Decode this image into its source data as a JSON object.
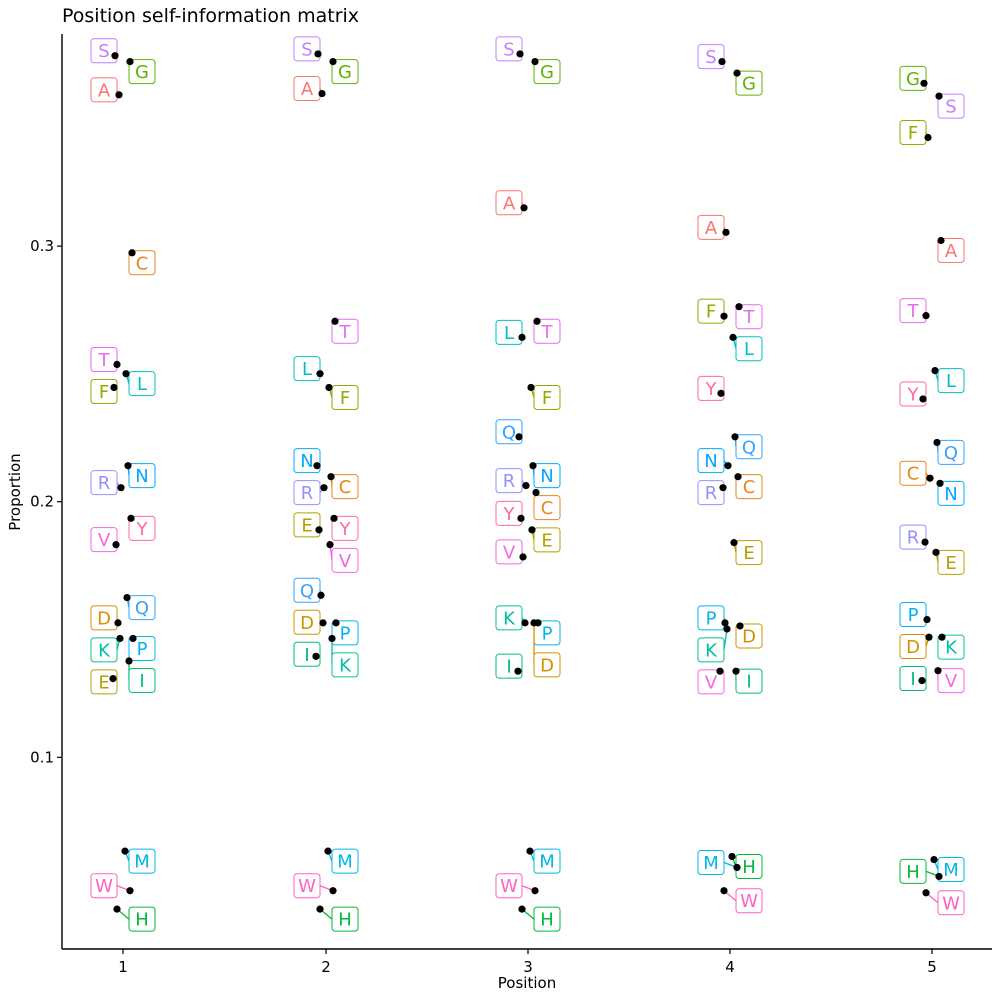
{
  "chart_data": {
    "type": "scatter",
    "title": "Position self-information matrix",
    "xlabel": "Position",
    "ylabel": "Proportion",
    "x_categories": [
      "1",
      "2",
      "3",
      "4",
      "5"
    ],
    "yticks": [
      0.1,
      0.2,
      0.3
    ],
    "ytick_labels": [
      "0.1",
      "0.2",
      "0.3"
    ],
    "ylim": [
      0.025,
      0.383
    ],
    "grid": false,
    "legend": "none",
    "colors": {
      "A": "#F8766D",
      "C": "#E7861B",
      "D": "#D39200",
      "E": "#B79F00",
      "F": "#93AA00",
      "G": "#5EB300",
      "H": "#00BA38",
      "I": "#00BF74",
      "K": "#00C19F",
      "L": "#00BFC4",
      "M": "#00B8E7",
      "N": "#00A9FF",
      "P": "#00B4F0",
      "Q": "#35A2FF",
      "R": "#9590FF",
      "S": "#C77CFF",
      "T": "#E76BF3",
      "V": "#F564E3",
      "W": "#FF61C3",
      "Y": "#FF6C91"
    },
    "points": [
      {
        "pos": 1,
        "aa": "S",
        "y": 0.3745
      },
      {
        "pos": 1,
        "aa": "G",
        "y": 0.3722
      },
      {
        "pos": 1,
        "aa": "A",
        "y": 0.3592
      },
      {
        "pos": 1,
        "aa": "C",
        "y": 0.2974
      },
      {
        "pos": 1,
        "aa": "T",
        "y": 0.2537
      },
      {
        "pos": 1,
        "aa": "L",
        "y": 0.2501
      },
      {
        "pos": 1,
        "aa": "F",
        "y": 0.2447
      },
      {
        "pos": 1,
        "aa": "N",
        "y": 0.2141
      },
      {
        "pos": 1,
        "aa": "R",
        "y": 0.2055
      },
      {
        "pos": 1,
        "aa": "Y",
        "y": 0.1935
      },
      {
        "pos": 1,
        "aa": "V",
        "y": 0.1832
      },
      {
        "pos": 1,
        "aa": "Q",
        "y": 0.1625
      },
      {
        "pos": 1,
        "aa": "D",
        "y": 0.1526
      },
      {
        "pos": 1,
        "aa": "P",
        "y": 0.1465
      },
      {
        "pos": 1,
        "aa": "K",
        "y": 0.1465
      },
      {
        "pos": 1,
        "aa": "I",
        "y": 0.1377
      },
      {
        "pos": 1,
        "aa": "E",
        "y": 0.1308
      },
      {
        "pos": 1,
        "aa": "M",
        "y": 0.0633
      },
      {
        "pos": 1,
        "aa": "W",
        "y": 0.0478
      },
      {
        "pos": 1,
        "aa": "H",
        "y": 0.0406
      },
      {
        "pos": 2,
        "aa": "S",
        "y": 0.3752
      },
      {
        "pos": 2,
        "aa": "G",
        "y": 0.3722
      },
      {
        "pos": 2,
        "aa": "A",
        "y": 0.3597
      },
      {
        "pos": 2,
        "aa": "T",
        "y": 0.2706
      },
      {
        "pos": 2,
        "aa": "L",
        "y": 0.2501
      },
      {
        "pos": 2,
        "aa": "F",
        "y": 0.2447
      },
      {
        "pos": 2,
        "aa": "N",
        "y": 0.2141
      },
      {
        "pos": 2,
        "aa": "C",
        "y": 0.2098
      },
      {
        "pos": 2,
        "aa": "R",
        "y": 0.2055
      },
      {
        "pos": 2,
        "aa": "Y",
        "y": 0.1935
      },
      {
        "pos": 2,
        "aa": "E",
        "y": 0.189
      },
      {
        "pos": 2,
        "aa": "V",
        "y": 0.1832
      },
      {
        "pos": 2,
        "aa": "Q",
        "y": 0.1634
      },
      {
        "pos": 2,
        "aa": "P",
        "y": 0.1526
      },
      {
        "pos": 2,
        "aa": "D",
        "y": 0.1526
      },
      {
        "pos": 2,
        "aa": "K",
        "y": 0.1465
      },
      {
        "pos": 2,
        "aa": "I",
        "y": 0.1395
      },
      {
        "pos": 2,
        "aa": "M",
        "y": 0.0633
      },
      {
        "pos": 2,
        "aa": "W",
        "y": 0.0478
      },
      {
        "pos": 2,
        "aa": "H",
        "y": 0.0406
      },
      {
        "pos": 3,
        "aa": "S",
        "y": 0.3752
      },
      {
        "pos": 3,
        "aa": "G",
        "y": 0.3722
      },
      {
        "pos": 3,
        "aa": "A",
        "y": 0.315
      },
      {
        "pos": 3,
        "aa": "T",
        "y": 0.2706
      },
      {
        "pos": 3,
        "aa": "L",
        "y": 0.2643
      },
      {
        "pos": 3,
        "aa": "F",
        "y": 0.2447
      },
      {
        "pos": 3,
        "aa": "Q",
        "y": 0.2254
      },
      {
        "pos": 3,
        "aa": "N",
        "y": 0.2141
      },
      {
        "pos": 3,
        "aa": "R",
        "y": 0.2063
      },
      {
        "pos": 3,
        "aa": "C",
        "y": 0.2036
      },
      {
        "pos": 3,
        "aa": "Y",
        "y": 0.1935
      },
      {
        "pos": 3,
        "aa": "E",
        "y": 0.189
      },
      {
        "pos": 3,
        "aa": "V",
        "y": 0.1784
      },
      {
        "pos": 3,
        "aa": "P",
        "y": 0.1526
      },
      {
        "pos": 3,
        "aa": "K",
        "y": 0.1526
      },
      {
        "pos": 3,
        "aa": "D",
        "y": 0.1526
      },
      {
        "pos": 3,
        "aa": "I",
        "y": 0.1337
      },
      {
        "pos": 3,
        "aa": "M",
        "y": 0.0633
      },
      {
        "pos": 3,
        "aa": "W",
        "y": 0.0478
      },
      {
        "pos": 3,
        "aa": "H",
        "y": 0.0406
      },
      {
        "pos": 4,
        "aa": "S",
        "y": 0.3722
      },
      {
        "pos": 4,
        "aa": "G",
        "y": 0.3677
      },
      {
        "pos": 4,
        "aa": "A",
        "y": 0.3054
      },
      {
        "pos": 4,
        "aa": "T",
        "y": 0.2763
      },
      {
        "pos": 4,
        "aa": "F",
        "y": 0.2726
      },
      {
        "pos": 4,
        "aa": "L",
        "y": 0.2643
      },
      {
        "pos": 4,
        "aa": "Y",
        "y": 0.2424
      },
      {
        "pos": 4,
        "aa": "Q",
        "y": 0.2254
      },
      {
        "pos": 4,
        "aa": "N",
        "y": 0.2141
      },
      {
        "pos": 4,
        "aa": "C",
        "y": 0.2098
      },
      {
        "pos": 4,
        "aa": "R",
        "y": 0.2055
      },
      {
        "pos": 4,
        "aa": "E",
        "y": 0.184
      },
      {
        "pos": 4,
        "aa": "P",
        "y": 0.1526
      },
      {
        "pos": 4,
        "aa": "D",
        "y": 0.1514
      },
      {
        "pos": 4,
        "aa": "K",
        "y": 0.1502
      },
      {
        "pos": 4,
        "aa": "I",
        "y": 0.1337
      },
      {
        "pos": 4,
        "aa": "V",
        "y": 0.1337
      },
      {
        "pos": 4,
        "aa": "H",
        "y": 0.0612
      },
      {
        "pos": 4,
        "aa": "M",
        "y": 0.0569
      },
      {
        "pos": 4,
        "aa": "W",
        "y": 0.0478
      },
      {
        "pos": 5,
        "aa": "G",
        "y": 0.3637
      },
      {
        "pos": 5,
        "aa": "S",
        "y": 0.3587
      },
      {
        "pos": 5,
        "aa": "F",
        "y": 0.3425
      },
      {
        "pos": 5,
        "aa": "A",
        "y": 0.3022
      },
      {
        "pos": 5,
        "aa": "T",
        "y": 0.2728
      },
      {
        "pos": 5,
        "aa": "L",
        "y": 0.2513
      },
      {
        "pos": 5,
        "aa": "Y",
        "y": 0.2402
      },
      {
        "pos": 5,
        "aa": "Q",
        "y": 0.2232
      },
      {
        "pos": 5,
        "aa": "C",
        "y": 0.2092
      },
      {
        "pos": 5,
        "aa": "N",
        "y": 0.2072
      },
      {
        "pos": 5,
        "aa": "R",
        "y": 0.1842
      },
      {
        "pos": 5,
        "aa": "E",
        "y": 0.1802
      },
      {
        "pos": 5,
        "aa": "P",
        "y": 0.1539
      },
      {
        "pos": 5,
        "aa": "K",
        "y": 0.147
      },
      {
        "pos": 5,
        "aa": "D",
        "y": 0.147
      },
      {
        "pos": 5,
        "aa": "V",
        "y": 0.1339
      },
      {
        "pos": 5,
        "aa": "I",
        "y": 0.13
      },
      {
        "pos": 5,
        "aa": "M",
        "y": 0.06
      },
      {
        "pos": 5,
        "aa": "H",
        "y": 0.0534
      },
      {
        "pos": 5,
        "aa": "W",
        "y": 0.047
      }
    ]
  }
}
